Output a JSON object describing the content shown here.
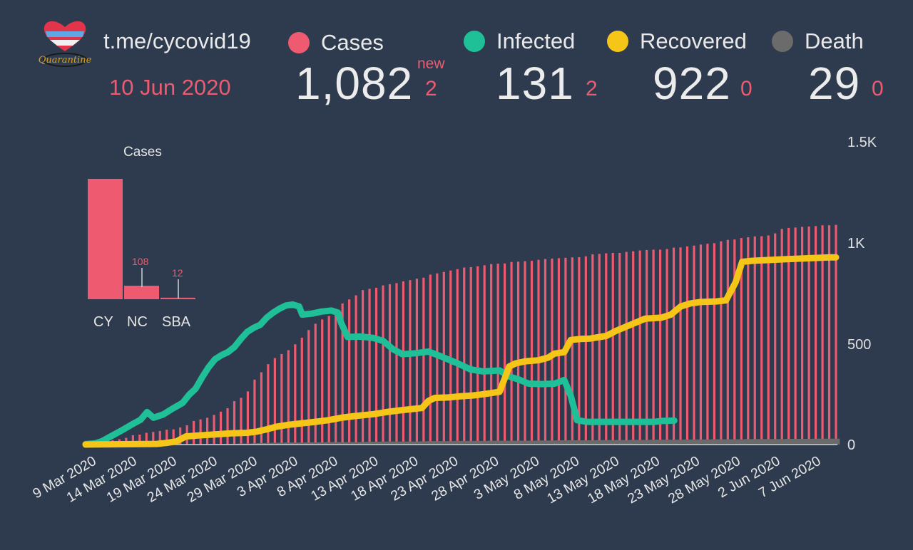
{
  "header": {
    "channel": "t.me/cycovid19",
    "date": "10 Jun 2020",
    "logo_text": "Quarantine"
  },
  "stats": [
    {
      "key": "cases",
      "label": "Cases",
      "value": "1,082",
      "delta": "2",
      "delta_label": "new",
      "color": "#ee5a6f"
    },
    {
      "key": "infected",
      "label": "Infected",
      "value": "131",
      "delta": "2",
      "color": "#1fbf98"
    },
    {
      "key": "recovered",
      "label": "Recovered",
      "value": "922",
      "delta": "0",
      "color": "#f5c518"
    },
    {
      "key": "death",
      "label": "Death",
      "value": "29",
      "delta": "0",
      "color": "#6b6b6b"
    }
  ],
  "chart_data": [
    {
      "type": "bar",
      "title": "Cases",
      "categories": [
        "CY",
        "NC",
        "SBA"
      ],
      "values": [
        962,
        108,
        12
      ],
      "ylim": [
        0,
        962
      ],
      "color": "#ee5a6f"
    },
    {
      "type": "bar+line",
      "x_start": "9 Mar 2020",
      "x_end": "10 Jun 2020",
      "x_ticks": [
        "9 Mar 2020",
        "14 Mar 2020",
        "19 Mar 2020",
        "24 Mar 2020",
        "29 Mar 2020",
        "3 Apr 2020",
        "8 Apr 2020",
        "13 Apr 2020",
        "18 Apr 2020",
        "23 Apr 2020",
        "28 Apr 2020",
        "3 May 2020",
        "8 May 2020",
        "13 May 2020",
        "18 May 2020",
        "23 May 2020",
        "28 May 2020",
        "2 Jun 2020",
        "7 Jun 2020"
      ],
      "y_ticks": [
        "0",
        "500",
        "1K",
        "1.5K"
      ],
      "ylim": [
        0,
        1500
      ],
      "series": [
        {
          "key": "cases",
          "kind": "bar",
          "color": "#ee5a6f",
          "values": [
            0,
            2,
            6,
            14,
            21,
            26,
            33,
            46,
            49,
            58,
            62,
            67,
            73,
            75,
            84,
            95,
            116,
            124,
            132,
            146,
            162,
            179,
            214,
            230,
            262,
            320,
            356,
            396,
            426,
            446,
            465,
            494,
            526,
            564,
            595,
            616,
            633,
            662,
            695,
            715,
            735,
            761,
            767,
            772,
            784,
            790,
            795,
            804,
            810,
            817,
            822,
            837,
            843,
            850,
            857,
            864,
            872,
            874,
            878,
            883,
            889,
            891,
            892,
            899,
            901,
            903,
            905,
            910,
            914,
            916,
            918,
            920,
            922,
            923,
            927,
            937,
            939,
            942,
            944,
            944,
            949,
            952,
            956,
            958,
            960,
            960,
            963,
            970,
            971,
            976,
            980,
            985,
            989,
            992,
            1001,
            1008,
            1010,
            1017,
            1021,
            1025,
            1026,
            1030,
            1040,
            1062,
            1067,
            1069,
            1072,
            1074,
            1076,
            1080,
            1080,
            1082
          ]
        },
        {
          "key": "infected",
          "kind": "line",
          "color": "#1fbf98",
          "values": [
            [
              0,
              2
            ],
            [
              6,
              6
            ],
            [
              10,
              16
            ],
            [
              16,
              42
            ],
            [
              22,
              68
            ],
            [
              28,
              96
            ],
            [
              34,
              122
            ],
            [
              38,
              160
            ],
            [
              42,
              132
            ],
            [
              48,
              148
            ],
            [
              54,
              178
            ],
            [
              60,
              205
            ],
            [
              64,
              245
            ],
            [
              68,
              275
            ],
            [
              72,
              330
            ],
            [
              76,
              380
            ],
            [
              80,
              420
            ],
            [
              84,
              440
            ],
            [
              88,
              455
            ],
            [
              92,
              480
            ],
            [
              96,
              520
            ],
            [
              100,
              555
            ],
            [
              104,
              575
            ],
            [
              108,
              590
            ],
            [
              112,
              625
            ],
            [
              116,
              650
            ],
            [
              120,
              670
            ],
            [
              124,
              685
            ],
            [
              128,
              690
            ],
            [
              132,
              680
            ],
            [
              134,
              640
            ],
            [
              140,
              645
            ],
            [
              146,
              655
            ],
            [
              152,
              660
            ],
            [
              156,
              650
            ],
            [
              158,
              600
            ],
            [
              162,
              530
            ],
            [
              170,
              532
            ],
            [
              178,
              525
            ],
            [
              184,
              510
            ],
            [
              190,
              470
            ],
            [
              196,
              445
            ],
            [
              204,
              450
            ],
            [
              212,
              458
            ],
            [
              218,
              440
            ],
            [
              224,
              420
            ],
            [
              230,
              400
            ],
            [
              238,
              370
            ],
            [
              246,
              360
            ],
            [
              256,
              365
            ],
            [
              262,
              335
            ],
            [
              268,
              320
            ],
            [
              274,
              300
            ],
            [
              282,
              298
            ],
            [
              290,
              300
            ],
            [
              296,
              318
            ],
            [
              300,
              240
            ],
            [
              304,
              120
            ],
            [
              310,
              112
            ],
            [
              326,
              112
            ],
            [
              342,
              112
            ],
            [
              352,
              112
            ],
            [
              356,
              116
            ],
            [
              364,
              118
            ]
          ]
        },
        {
          "key": "recovered",
          "kind": "line",
          "color": "#f5c518",
          "values": [
            [
              0,
              0
            ],
            [
              44,
              3
            ],
            [
              50,
              8
            ],
            [
              56,
              15
            ],
            [
              62,
              40
            ],
            [
              70,
              45
            ],
            [
              80,
              50
            ],
            [
              90,
              55
            ],
            [
              100,
              58
            ],
            [
              106,
              64
            ],
            [
              112,
              75
            ],
            [
              118,
              88
            ],
            [
              126,
              98
            ],
            [
              134,
              105
            ],
            [
              142,
              112
            ],
            [
              150,
              120
            ],
            [
              158,
              132
            ],
            [
              166,
              140
            ],
            [
              172,
              145
            ],
            [
              178,
              150
            ],
            [
              186,
              160
            ],
            [
              194,
              168
            ],
            [
              202,
              175
            ],
            [
              208,
              180
            ],
            [
              212,
              215
            ],
            [
              216,
              230
            ],
            [
              224,
              232
            ],
            [
              232,
              238
            ],
            [
              240,
              242
            ],
            [
              246,
              248
            ],
            [
              252,
              255
            ],
            [
              256,
              260
            ],
            [
              262,
              385
            ],
            [
              266,
              400
            ],
            [
              272,
              410
            ],
            [
              280,
              415
            ],
            [
              286,
              428
            ],
            [
              290,
              448
            ],
            [
              296,
              455
            ],
            [
              300,
              515
            ],
            [
              306,
              520
            ],
            [
              312,
              522
            ],
            [
              322,
              535
            ],
            [
              328,
              560
            ],
            [
              334,
              580
            ],
            [
              340,
              600
            ],
            [
              346,
              620
            ],
            [
              356,
              625
            ],
            [
              362,
              640
            ],
            [
              368,
              680
            ],
            [
              374,
              695
            ],
            [
              380,
              702
            ],
            [
              390,
              705
            ],
            [
              396,
              710
            ],
            [
              402,
              800
            ],
            [
              406,
              900
            ],
            [
              412,
              905
            ],
            [
              430,
              912
            ],
            [
              448,
              918
            ],
            [
              460,
              922
            ]
          ]
        },
        {
          "key": "death",
          "kind": "bar",
          "color": "#6b6b6b",
          "values": [
            0,
            0,
            0,
            0,
            0,
            0,
            0,
            0,
            0,
            0,
            0,
            0,
            0,
            0,
            1,
            1,
            2,
            2,
            3,
            3,
            3,
            3,
            4,
            5,
            5,
            6,
            7,
            8,
            9,
            9,
            10,
            10,
            10,
            11,
            11,
            11,
            12,
            12,
            12,
            12,
            12,
            13,
            14,
            14,
            15,
            15,
            15,
            15,
            15,
            15,
            16,
            17,
            17,
            17,
            17,
            18,
            18,
            18,
            18,
            18,
            19,
            19,
            19,
            19,
            19,
            19,
            19,
            20,
            20,
            20,
            21,
            21,
            21,
            21,
            21,
            21,
            22,
            22,
            22,
            22,
            22,
            23,
            23,
            23,
            24,
            24,
            24,
            24,
            24,
            25,
            25,
            25,
            25,
            26,
            26,
            26,
            26,
            26,
            27,
            27,
            27,
            27,
            27,
            27,
            28,
            28,
            28,
            28,
            29,
            29,
            29,
            29
          ]
        }
      ]
    }
  ]
}
